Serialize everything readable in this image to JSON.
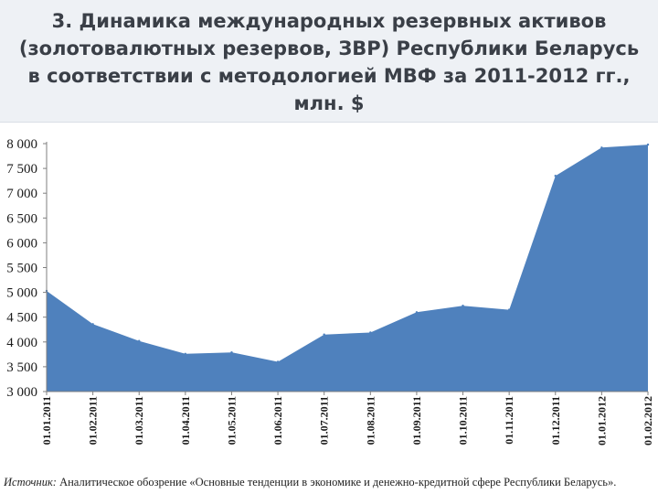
{
  "slide": {
    "title": "3. Динамика международных резервных активов\n(золотовалютных резервов, ЗВР) Республики Беларусь\nв соответствии с методологией МВФ за 2011-2012 гг.,\nмлн. $",
    "source_label": "Источник:",
    "source_text": " Аналитическое обозрение «Основные тенденции в экономике и денежно-кредитной сфере Республики Беларусь»."
  },
  "colors": {
    "area": "#4f81bd",
    "header_bg": "#eef1f5",
    "title": "#3a3f47"
  },
  "chart_data": {
    "type": "area",
    "title": "",
    "xlabel": "",
    "ylabel": "",
    "ylim": [
      3000,
      8000
    ],
    "grid": false,
    "y_ticks": [
      "3 000",
      "3 500",
      "4 000",
      "4 500",
      "5 000",
      "5 500",
      "6 000",
      "6 500",
      "7 000",
      "7 500",
      "8 000"
    ],
    "categories": [
      "01.01.2011",
      "01.02.2011",
      "01.03.2011",
      "01.04.2011",
      "01.05.2011",
      "01.06.2011",
      "01.07.2011",
      "01.08.2011",
      "01.09.2011",
      "01.10.2011",
      "01.11.2011",
      "01.12.2011",
      "01.01.2012",
      "01.02.2012"
    ],
    "series": [
      {
        "values": [
          5030,
          4360,
          4020,
          3760,
          3790,
          3600,
          4150,
          4190,
          4600,
          4730,
          4650,
          7350,
          7920,
          7980
        ]
      }
    ]
  }
}
